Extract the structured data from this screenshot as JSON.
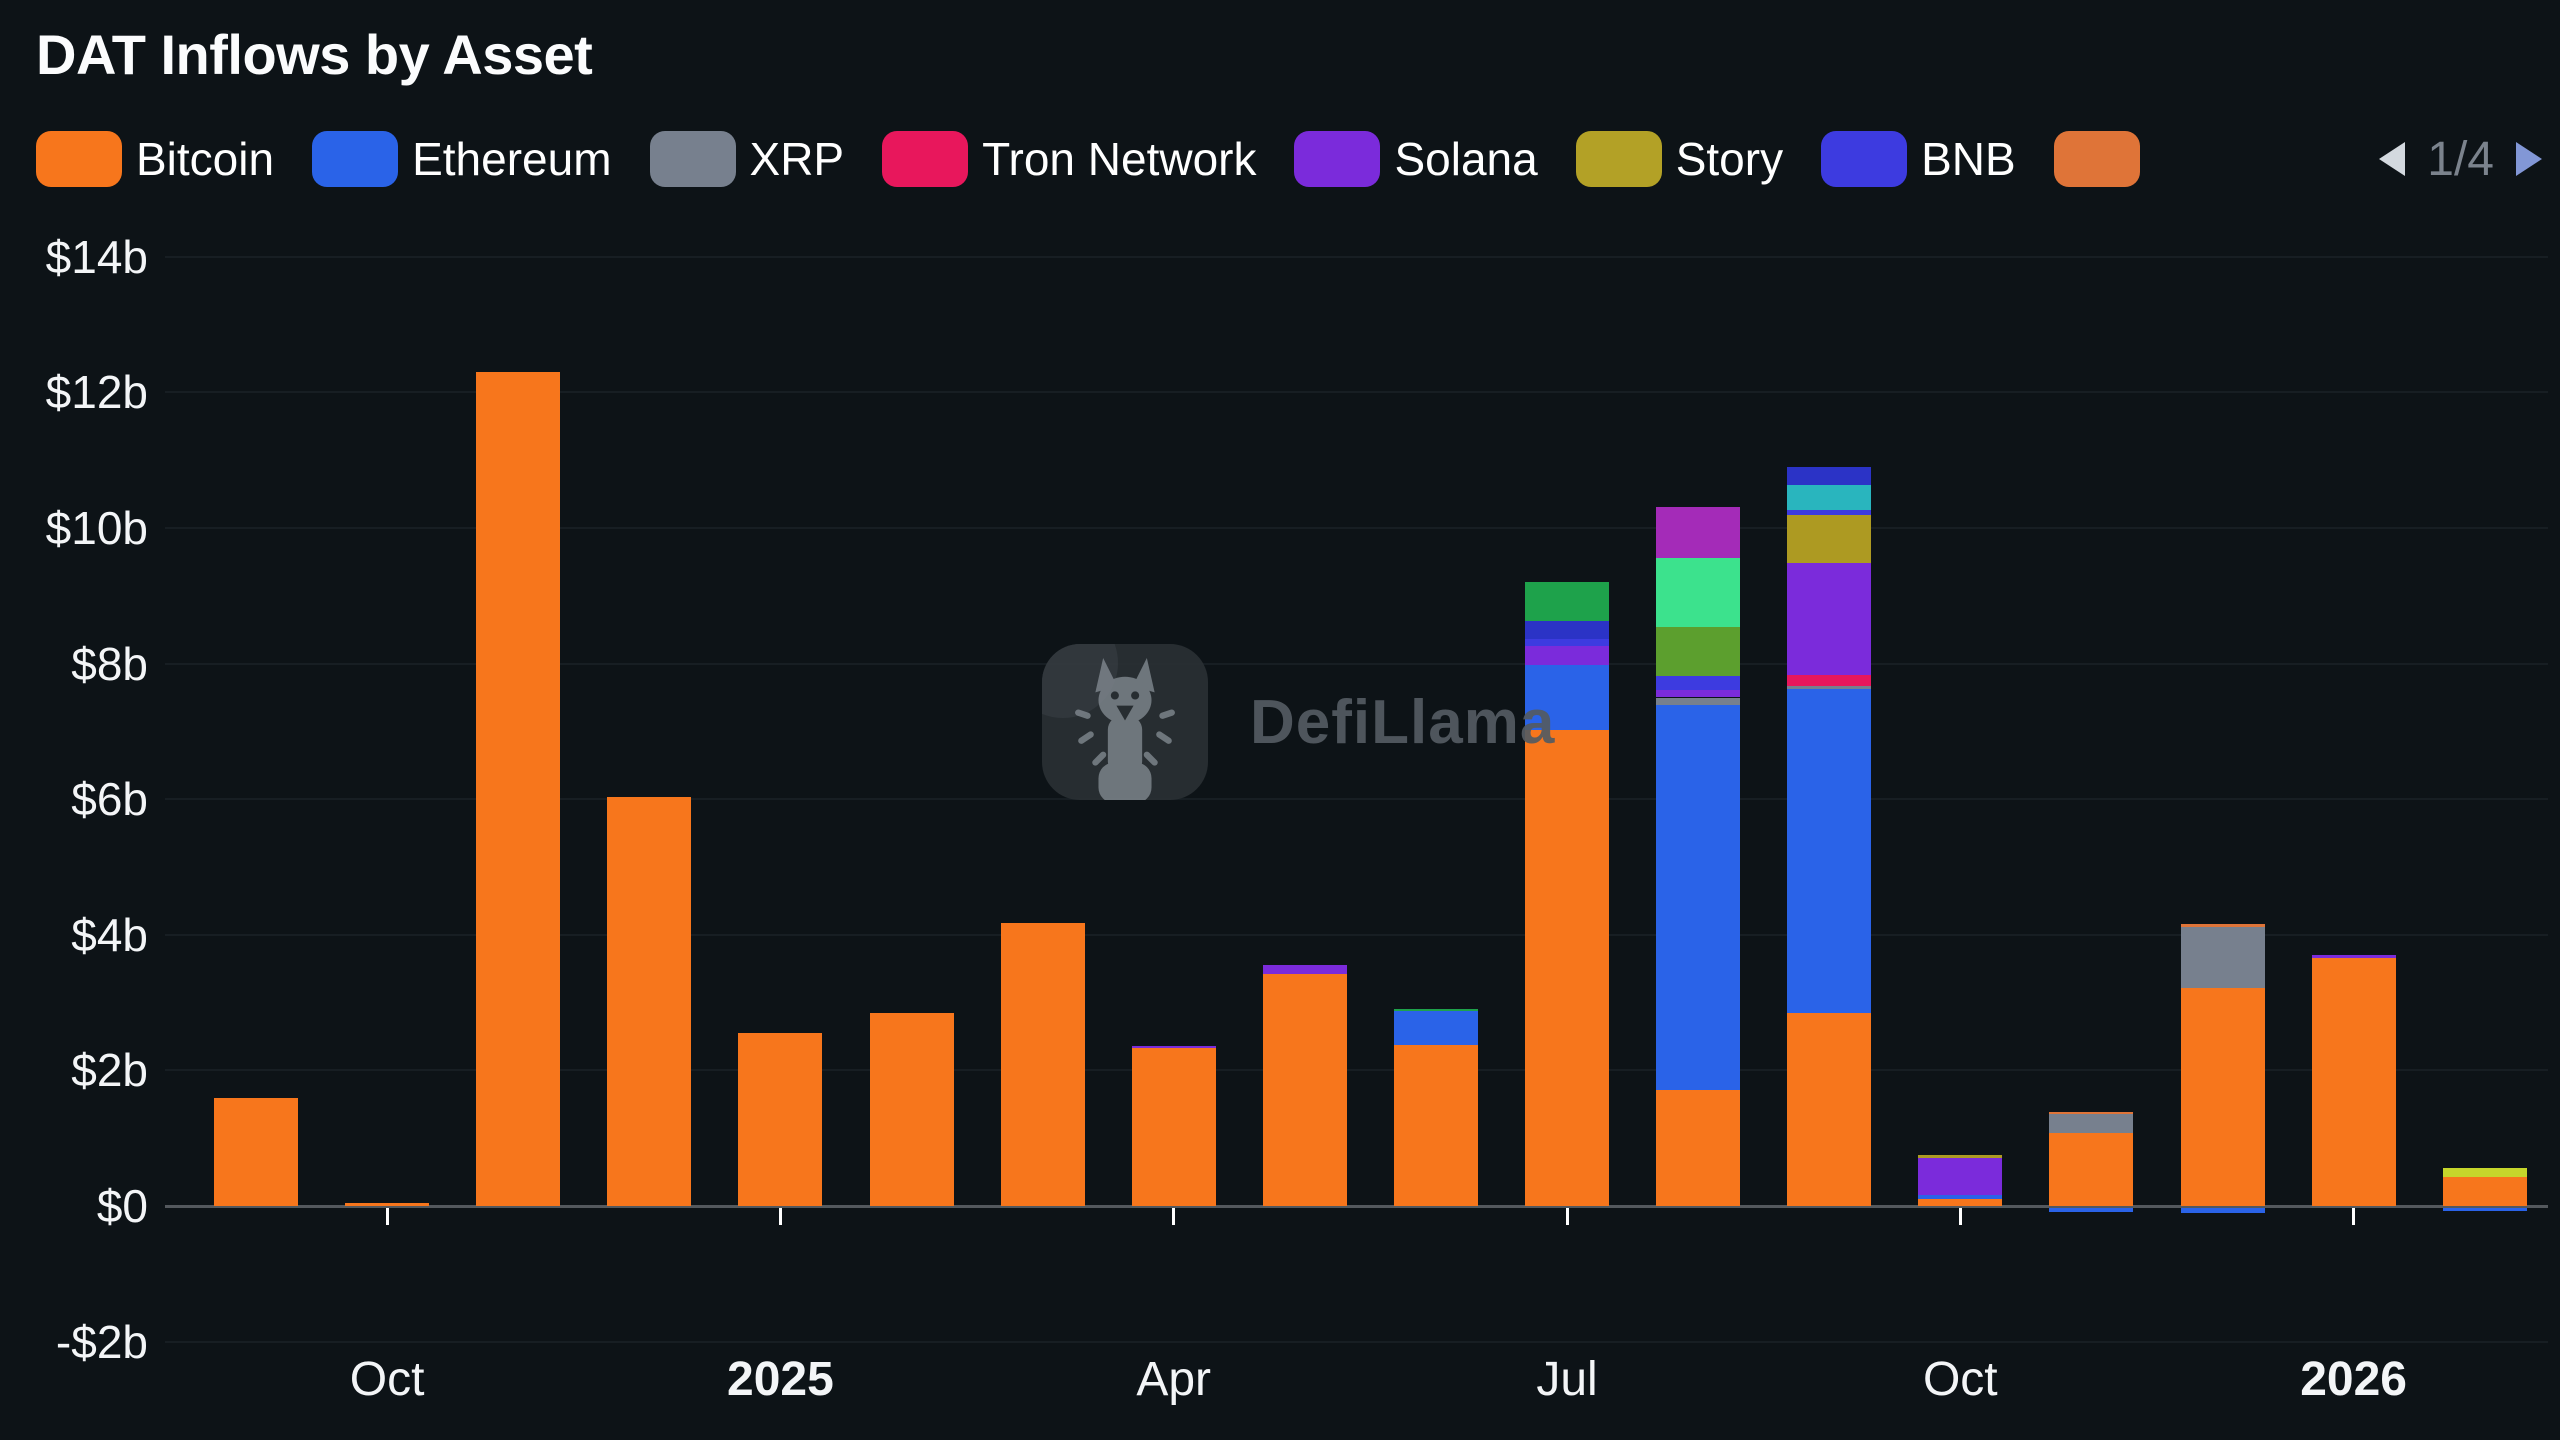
{
  "title": "DAT Inflows by Asset",
  "legend": {
    "items": [
      {
        "label": "Bitcoin",
        "color": "#F7761C"
      },
      {
        "label": "Ethereum",
        "color": "#2A63E8"
      },
      {
        "label": "XRP",
        "color": "#77808E"
      },
      {
        "label": "Tron Network",
        "color": "#E8175C"
      },
      {
        "label": "Solana",
        "color": "#7B2BDB"
      },
      {
        "label": "Story",
        "color": "#B3A126"
      },
      {
        "label": "BNB",
        "color": "#3D3BE0"
      },
      {
        "label": "",
        "color": "#DF7438"
      }
    ],
    "pagination": {
      "label": "1/4",
      "prev_icon": "left-triangle",
      "next_icon": "right-triangle"
    }
  },
  "watermark": {
    "text": "DefiLlama"
  },
  "chart_data": {
    "type": "bar",
    "stacked": true,
    "title": "DAT Inflows by Asset",
    "unit": "billions USD",
    "ylim": [
      -2.9,
      14.2
    ],
    "grid": "horizontal",
    "legend_position": "top",
    "y_ticks": [
      {
        "value": 14,
        "label": "$14b"
      },
      {
        "value": 12,
        "label": "$12b"
      },
      {
        "value": 10,
        "label": "$10b"
      },
      {
        "value": 8,
        "label": "$8b"
      },
      {
        "value": 6,
        "label": "$6b"
      },
      {
        "value": 4,
        "label": "$4b"
      },
      {
        "value": 2,
        "label": "$2b"
      },
      {
        "value": 0,
        "label": "$0"
      },
      {
        "value": -2,
        "label": "-$2b"
      }
    ],
    "x_axis_ticks": [
      {
        "label": "Oct",
        "bar_index": 1,
        "bold": false
      },
      {
        "label": "2025",
        "bar_index": 4,
        "bold": true
      },
      {
        "label": "Apr",
        "bar_index": 7,
        "bold": false
      },
      {
        "label": "Jul",
        "bar_index": 10,
        "bold": false
      },
      {
        "label": "Oct",
        "bar_index": 13,
        "bold": false
      },
      {
        "label": "2026",
        "bar_index": 16,
        "bold": true
      }
    ],
    "asset_colors": {
      "Bitcoin": "#F7761C",
      "Ethereum": "#2A63E8",
      "XRP": "#77808E",
      "Tron Network": "#E8175C",
      "Solana": "#7B2BDB",
      "Story": "#AD9A22",
      "BNB": "#3D3BE0",
      "Other (orange)": "#DF7438",
      "Other (navy)": "#2B33C6",
      "Other (green)": "#1EA24B",
      "Other (mint)": "#3CE28D",
      "Other (olive-green)": "#5C9F2E",
      "Other (magenta)": "#A42BB8",
      "Other (teal)": "#29B5BE",
      "Other (lime)": "#C6D62B"
    },
    "bars": [
      {
        "month": "Sep 2024",
        "total": 1.6,
        "segments": [
          {
            "asset": "Bitcoin",
            "value": 1.6
          }
        ]
      },
      {
        "month": "Oct 2024",
        "total": 0.05,
        "segments": [
          {
            "asset": "Bitcoin",
            "value": 0.05
          }
        ]
      },
      {
        "month": "Nov 2024",
        "total": 12.3,
        "segments": [
          {
            "asset": "Bitcoin",
            "value": 12.3
          }
        ]
      },
      {
        "month": "Dec 2024",
        "total": 6.03,
        "segments": [
          {
            "asset": "Bitcoin",
            "value": 6.03
          }
        ]
      },
      {
        "month": "Jan 2025",
        "total": 2.55,
        "segments": [
          {
            "asset": "Bitcoin",
            "value": 2.55
          }
        ]
      },
      {
        "month": "Feb 2025",
        "total": 2.85,
        "segments": [
          {
            "asset": "Bitcoin",
            "value": 2.85
          }
        ]
      },
      {
        "month": "Mar 2025",
        "total": 4.17,
        "segments": [
          {
            "asset": "Bitcoin",
            "value": 4.17
          }
        ]
      },
      {
        "month": "Apr 2025",
        "total": 2.36,
        "segments": [
          {
            "asset": "Bitcoin",
            "value": 2.33
          },
          {
            "asset": "Solana",
            "value": 0.03
          }
        ]
      },
      {
        "month": "May 2025",
        "total": 3.55,
        "segments": [
          {
            "asset": "Bitcoin",
            "value": 3.42
          },
          {
            "asset": "Solana",
            "value": 0.13
          }
        ]
      },
      {
        "month": "Jun 2025",
        "total": 2.9,
        "segments": [
          {
            "asset": "Bitcoin",
            "value": 2.37
          },
          {
            "asset": "Ethereum",
            "value": 0.5
          },
          {
            "asset": "Other (green)",
            "value": 0.03
          }
        ]
      },
      {
        "month": "Jul 2025",
        "total": 9.2,
        "segments": [
          {
            "asset": "Bitcoin",
            "value": 7.02
          },
          {
            "asset": "Ethereum",
            "value": 0.96
          },
          {
            "asset": "Solana",
            "value": 0.28
          },
          {
            "asset": "BNB",
            "value": 0.1
          },
          {
            "asset": "Other (navy)",
            "value": 0.27
          },
          {
            "asset": "Other (green)",
            "value": 0.57
          }
        ]
      },
      {
        "month": "Aug 2025",
        "total": 10.31,
        "segments": [
          {
            "asset": "Bitcoin",
            "value": 1.71
          },
          {
            "asset": "Ethereum",
            "value": 5.68
          },
          {
            "asset": "XRP",
            "value": 0.11
          },
          {
            "asset": "Solana",
            "value": 0.11
          },
          {
            "asset": "BNB",
            "value": 0.21
          },
          {
            "asset": "Other (olive-green)",
            "value": 0.72
          },
          {
            "asset": "Other (mint)",
            "value": 1.02
          },
          {
            "asset": "Other (magenta)",
            "value": 0.75
          }
        ]
      },
      {
        "month": "Sep 2025",
        "total": 10.89,
        "segments": [
          {
            "asset": "Bitcoin",
            "value": 2.85
          },
          {
            "asset": "Ethereum",
            "value": 4.78
          },
          {
            "asset": "XRP",
            "value": 0.03
          },
          {
            "asset": "Tron Network",
            "value": 0.16
          },
          {
            "asset": "Solana",
            "value": 1.66
          },
          {
            "asset": "Story",
            "value": 0.71
          },
          {
            "asset": "BNB",
            "value": 0.07
          },
          {
            "asset": "Other (teal)",
            "value": 0.36
          },
          {
            "asset": "Other (navy)",
            "value": 0.27
          }
        ]
      },
      {
        "month": "Oct 2025",
        "total": 0.75,
        "segments": [
          {
            "asset": "Bitcoin",
            "value": 0.1
          },
          {
            "asset": "Ethereum",
            "value": 0.06
          },
          {
            "asset": "Solana",
            "value": 0.55
          },
          {
            "asset": "Story",
            "value": 0.04
          }
        ]
      },
      {
        "month": "Nov 2025",
        "total": 1.38,
        "segments": [
          {
            "asset": "Ethereum",
            "value": -0.06
          },
          {
            "asset": "Bitcoin",
            "value": 1.08
          },
          {
            "asset": "XRP",
            "value": 0.27
          },
          {
            "asset": "Other (orange)",
            "value": 0.03
          }
        ]
      },
      {
        "month": "Dec 2025",
        "total": 4.15,
        "segments": [
          {
            "asset": "Ethereum",
            "value": -0.07
          },
          {
            "asset": "Bitcoin",
            "value": 3.22
          },
          {
            "asset": "XRP",
            "value": 0.9
          },
          {
            "asset": "Other (orange)",
            "value": 0.03
          }
        ]
      },
      {
        "month": "Jan 2026",
        "total": 3.7,
        "segments": [
          {
            "asset": "Bitcoin",
            "value": 3.66
          },
          {
            "asset": "Solana",
            "value": 0.04
          }
        ]
      },
      {
        "month": "Feb 2026",
        "total": 0.56,
        "segments": [
          {
            "asset": "Ethereum",
            "value": -0.05
          },
          {
            "asset": "Bitcoin",
            "value": 0.43
          },
          {
            "asset": "Other (lime)",
            "value": 0.13
          }
        ]
      }
    ]
  }
}
